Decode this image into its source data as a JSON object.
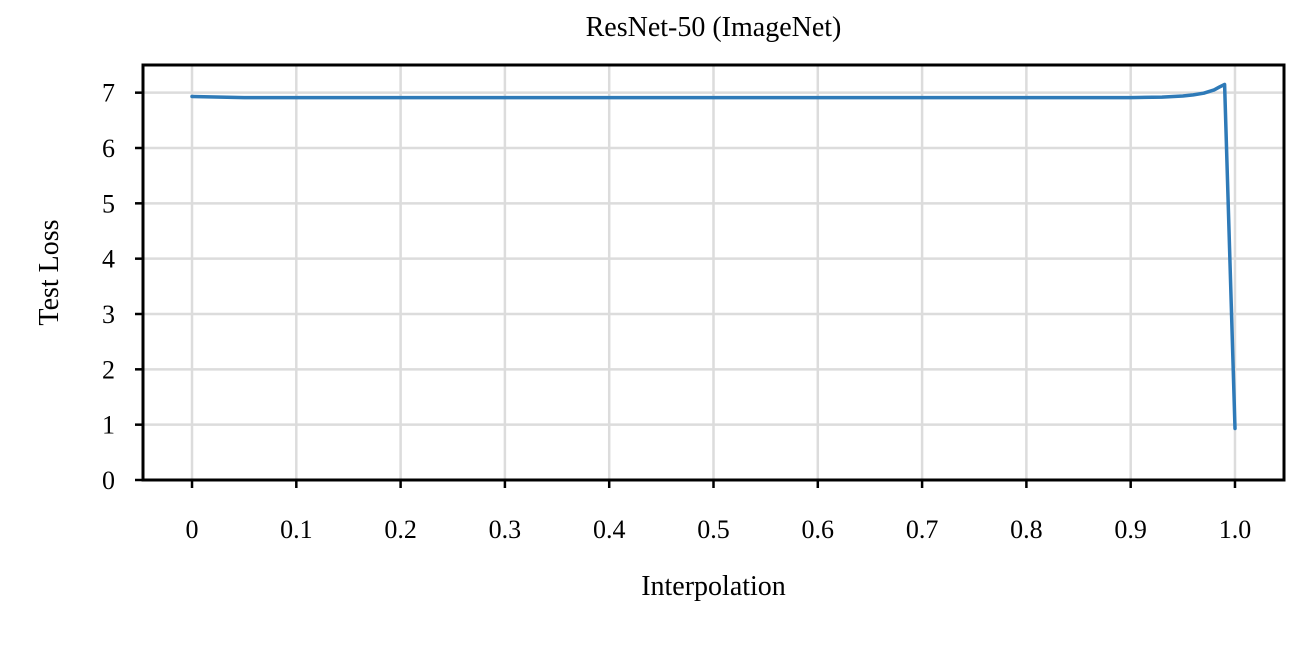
{
  "chart_data": {
    "type": "line",
    "title": "ResNet-50 (ImageNet)",
    "xlabel": "Interpolation",
    "ylabel": "Test Loss",
    "xlim": [
      -0.047,
      1.047
    ],
    "ylim": [
      0,
      7.5
    ],
    "xticks": [
      {
        "value": 0,
        "label": "0"
      },
      {
        "value": 0.1,
        "label": "0.1"
      },
      {
        "value": 0.2,
        "label": "0.2"
      },
      {
        "value": 0.3,
        "label": "0.3"
      },
      {
        "value": 0.4,
        "label": "0.4"
      },
      {
        "value": 0.5,
        "label": "0.5"
      },
      {
        "value": 0.6,
        "label": "0.6"
      },
      {
        "value": 0.7,
        "label": "0.7"
      },
      {
        "value": 0.8,
        "label": "0.8"
      },
      {
        "value": 0.9,
        "label": "0.9"
      },
      {
        "value": 1.0,
        "label": "1.0"
      }
    ],
    "yticks": [
      {
        "value": 0,
        "label": "0"
      },
      {
        "value": 1,
        "label": "1"
      },
      {
        "value": 2,
        "label": "2"
      },
      {
        "value": 3,
        "label": "3"
      },
      {
        "value": 4,
        "label": "4"
      },
      {
        "value": 5,
        "label": "5"
      },
      {
        "value": 6,
        "label": "6"
      },
      {
        "value": 7,
        "label": "7"
      }
    ],
    "grid": true,
    "series": [
      {
        "color": "#2e7ab8",
        "x": [
          0,
          0.05,
          0.1,
          0.2,
          0.3,
          0.4,
          0.5,
          0.6,
          0.7,
          0.8,
          0.85,
          0.9,
          0.93,
          0.95,
          0.96,
          0.97,
          0.98,
          0.985,
          0.99,
          1.0
        ],
        "y": [
          6.93,
          6.91,
          6.91,
          6.91,
          6.91,
          6.91,
          6.91,
          6.91,
          6.91,
          6.91,
          6.91,
          6.91,
          6.92,
          6.94,
          6.96,
          6.99,
          7.05,
          7.1,
          7.15,
          0.93
        ]
      }
    ]
  }
}
